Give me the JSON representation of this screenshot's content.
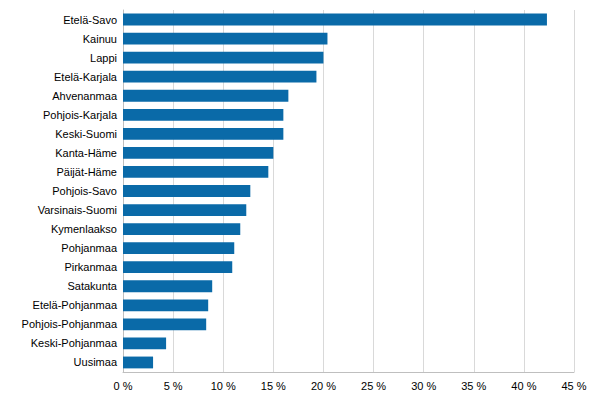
{
  "chart_data": {
    "type": "bar",
    "orientation": "horizontal",
    "categories": [
      "Etelä-Savo",
      "Kainuu",
      "Lappi",
      "Etelä-Karjala",
      "Ahvenanmaa",
      "Pohjois-Karjala",
      "Keski-Suomi",
      "Kanta-Häme",
      "Päijät-Häme",
      "Pohjois-Savo",
      "Varsinais-Suomi",
      "Kymenlaakso",
      "Pohjanmaa",
      "Pirkanmaa",
      "Satakunta",
      "Etelä-Pohjanmaa",
      "Pohjois-Pohjanmaa",
      "Keski-Pohjanmaa",
      "Uusimaa"
    ],
    "values": [
      42.3,
      20.4,
      20.0,
      19.3,
      16.5,
      16.0,
      16.0,
      15.0,
      14.5,
      12.7,
      12.3,
      11.7,
      11.1,
      10.9,
      8.9,
      8.5,
      8.3,
      4.3,
      3.0
    ],
    "color": "#0a6aa8",
    "xlim": [
      0,
      45
    ],
    "xticks": [
      {
        "value": 0,
        "label": "0 %"
      },
      {
        "value": 5,
        "label": "5 %"
      },
      {
        "value": 10,
        "label": "10 %"
      },
      {
        "value": 15,
        "label": "15 %"
      },
      {
        "value": 20,
        "label": "20 %"
      },
      {
        "value": 25,
        "label": "25 %"
      },
      {
        "value": 30,
        "label": "30 %"
      },
      {
        "value": 35,
        "label": "35 %"
      },
      {
        "value": 40,
        "label": "40 %"
      },
      {
        "value": 45,
        "label": "45 %"
      }
    ],
    "grid": true
  }
}
